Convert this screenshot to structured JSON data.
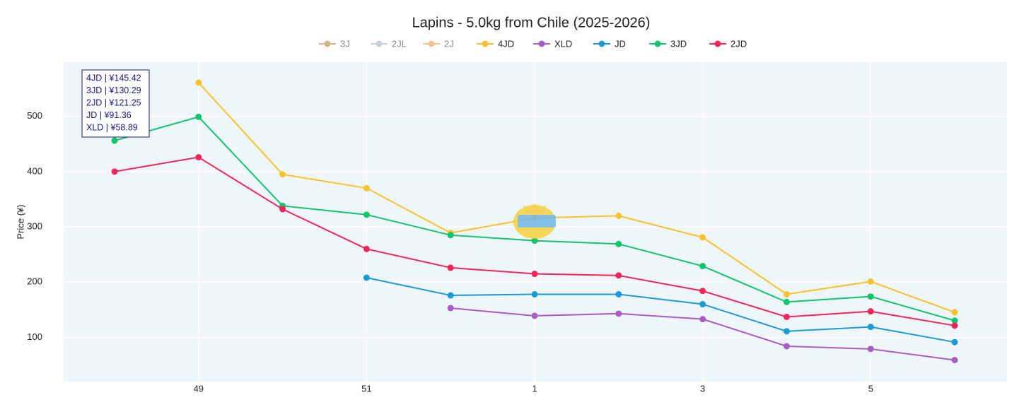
{
  "chart_data": {
    "type": "line",
    "title": "Lapins - 5.0kg from Chile (2025-2026)",
    "y_label": "Price (¥)",
    "categories": [
      null,
      "49",
      null,
      "51",
      null,
      "1",
      null,
      "3",
      null,
      "5",
      null
    ],
    "ylim": [
      20,
      598
    ],
    "yticks": [
      100,
      200,
      300,
      400,
      500
    ],
    "grid": true,
    "legend": "top",
    "series": [
      {
        "name": "3J",
        "color": "#d4b483",
        "hidden": true,
        "values": [
          null,
          null,
          null,
          null,
          null,
          null,
          null,
          null,
          null,
          null,
          null
        ]
      },
      {
        "name": "2JL",
        "color": "#c9d1dc",
        "hidden": true,
        "values": [
          null,
          null,
          null,
          null,
          null,
          null,
          null,
          null,
          null,
          null,
          null
        ]
      },
      {
        "name": "2J",
        "color": "#f7c08f",
        "hidden": true,
        "values": [
          null,
          null,
          null,
          null,
          null,
          null,
          null,
          null,
          null,
          null,
          null
        ]
      },
      {
        "name": "4JD",
        "color": "#f8c22c",
        "values": [
          null,
          561,
          395,
          370,
          289,
          316,
          320,
          281,
          178,
          201,
          145.42
        ]
      },
      {
        "name": "XLD",
        "color": "#a95cc2",
        "values": [
          null,
          null,
          null,
          null,
          153,
          139,
          143,
          133,
          84,
          79,
          58.89
        ]
      },
      {
        "name": "JD",
        "color": "#1a9bd7",
        "values": [
          null,
          null,
          null,
          208,
          176,
          178,
          178,
          160,
          111,
          119,
          91.36
        ]
      },
      {
        "name": "3JD",
        "color": "#12c46e",
        "values": [
          456,
          499,
          338,
          322,
          285,
          275,
          269,
          229,
          164,
          174,
          130.29
        ]
      },
      {
        "name": "2JD",
        "color": "#f2255b",
        "values": [
          400,
          426,
          332,
          260,
          226,
          215,
          212,
          184,
          137,
          147,
          121.25
        ]
      }
    ],
    "tooltip": [
      "4JD | ¥145.42",
      "3JD | ¥130.29",
      "2JD | ¥121.25",
      "JD | ¥91.36",
      "XLD | ¥58.89"
    ]
  }
}
